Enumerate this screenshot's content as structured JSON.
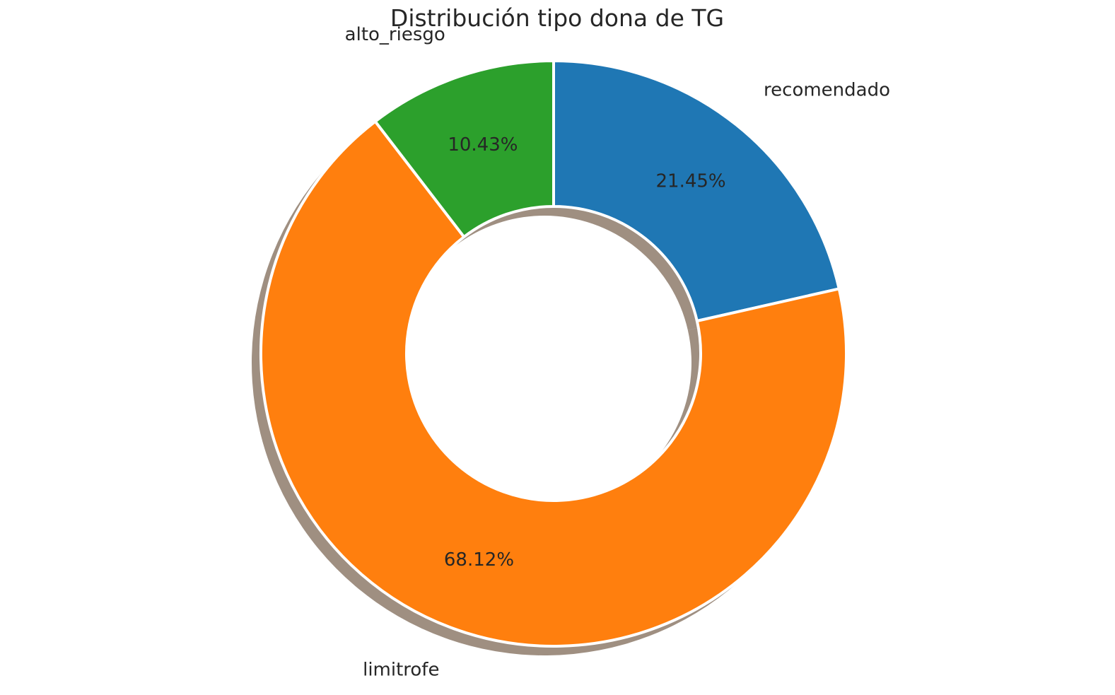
{
  "chart_data": {
    "type": "pie",
    "subtype": "donut",
    "title": "Distribución tipo dona de TG",
    "start_angle_deg": 90,
    "direction": "clockwise",
    "shadow": true,
    "slices": [
      {
        "label": "recomendado",
        "value": 21.45,
        "pct_label": "21.45%",
        "color": "#1f77b4"
      },
      {
        "label": "limitrofe",
        "value": 68.12,
        "pct_label": "68.12%",
        "color": "#ff7f0e"
      },
      {
        "label": "alto_riesgo",
        "value": 10.43,
        "pct_label": "10.43%",
        "color": "#2ca02c"
      }
    ],
    "edge_color": "#ffffff",
    "shadow_color": "#7f6a57"
  }
}
